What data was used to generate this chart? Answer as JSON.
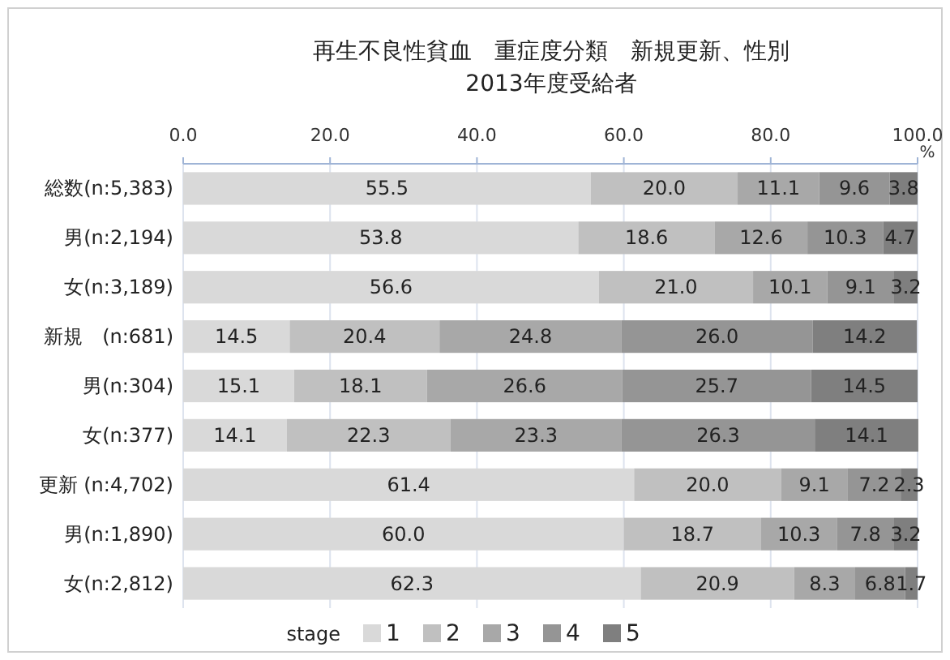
{
  "chart_data": {
    "type": "bar",
    "orientation": "horizontal",
    "stacked": true,
    "title": "再生不良性貧血　重症度分類　新規更新、性別",
    "subtitle": "2013年度受給者",
    "xlabel": "%",
    "legend_title": "stage",
    "categories": [
      "総数(n:5,383)",
      "男(n:2,194)",
      "女(n:3,189)",
      "新規　(n:681)",
      "男(n:304)",
      "女(n:377)",
      "更新 (n:4,702)",
      "男(n:1,890)",
      "女(n:2,812)"
    ],
    "series": [
      {
        "name": "1",
        "color": "#d9d9d9",
        "values": [
          55.5,
          53.8,
          56.6,
          14.5,
          15.1,
          14.1,
          61.4,
          60.0,
          62.3
        ],
        "value_labels": [
          "55.5",
          "53.8",
          "56.6",
          "14.5",
          "15.1",
          "14.1",
          "61.4",
          "60.0",
          "62.3"
        ]
      },
      {
        "name": "2",
        "color": "#c0c0c0",
        "values": [
          20.0,
          18.6,
          21.0,
          20.4,
          18.1,
          22.3,
          20.0,
          18.7,
          20.9
        ],
        "value_labels": [
          "20.0",
          "18.6",
          "21.0",
          "20.4",
          "18.1",
          "22.3",
          "20.0",
          "18.7",
          "20.9"
        ]
      },
      {
        "name": "3",
        "color": "#a8a8a8",
        "values": [
          11.1,
          12.6,
          10.1,
          24.8,
          26.6,
          23.3,
          9.1,
          10.3,
          8.3
        ],
        "value_labels": [
          "11.1",
          "12.6",
          "10.1",
          "24.8",
          "26.6",
          "23.3",
          "9.1",
          "10.3",
          "8.3"
        ]
      },
      {
        "name": "4",
        "color": "#959595",
        "values": [
          9.6,
          10.3,
          9.1,
          26.0,
          25.7,
          26.3,
          7.2,
          7.8,
          6.8
        ],
        "value_labels": [
          "9.6",
          "10.3",
          "9.1",
          "26.0",
          "25.7",
          "26.3",
          "7.2",
          "7.8",
          "6.8"
        ]
      },
      {
        "name": "5",
        "color": "#7f7f7f",
        "values": [
          3.8,
          4.7,
          3.2,
          14.2,
          14.5,
          14.1,
          2.3,
          3.2,
          1.7
        ],
        "value_labels": [
          "3.8",
          "4.7",
          "3.2",
          "14.2",
          "14.5",
          "14.1",
          "2.3",
          "3.2",
          "1.7"
        ]
      }
    ],
    "xlim": [
      0,
      100
    ],
    "xticks": [
      {
        "value": 0,
        "label": "0.0"
      },
      {
        "value": 20,
        "label": "20.0"
      },
      {
        "value": 40,
        "label": "40.0"
      },
      {
        "value": 60,
        "label": "60.0"
      },
      {
        "value": 80,
        "label": "80.0"
      },
      {
        "value": 100,
        "label": "100.0"
      }
    ],
    "grid": "x",
    "legend": "bottom"
  }
}
